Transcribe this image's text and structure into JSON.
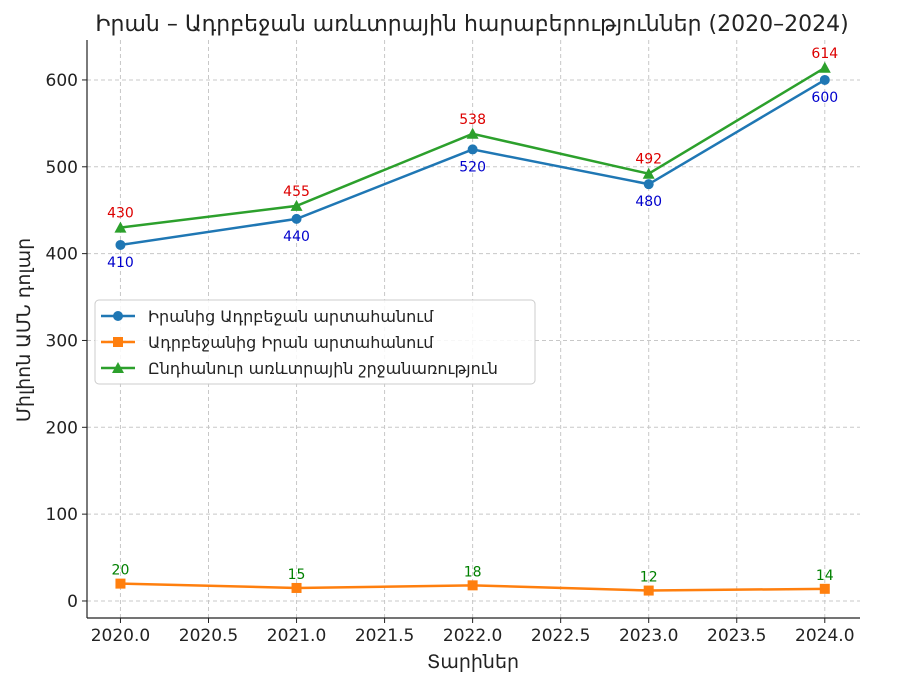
{
  "chart_data": {
    "type": "line",
    "title": "Իրան – Ադրբեջան առևտրային հարաբերություններ (2020–2024)",
    "xlabel": "Տարիներ",
    "ylabel": "Միլիոն ԱՄՆ դոլար",
    "x": [
      2020,
      2021,
      2022,
      2023,
      2024
    ],
    "xlim": [
      2019.81,
      2024.2
    ],
    "ylim": [
      -19.6,
      646
    ],
    "xticks": [
      2020.0,
      2020.5,
      2021.0,
      2021.5,
      2022.0,
      2022.5,
      2023.0,
      2023.5,
      2024.0
    ],
    "xtick_labels": [
      "2020.0",
      "2020.5",
      "2021.0",
      "2021.5",
      "2022.0",
      "2022.5",
      "2023.0",
      "2023.5",
      "2024.0"
    ],
    "yticks": [
      0,
      100,
      200,
      300,
      400,
      500,
      600
    ],
    "ytick_labels": [
      "0",
      "100",
      "200",
      "300",
      "400",
      "500",
      "600"
    ],
    "grid": true,
    "legend_position": "top-left",
    "series": [
      {
        "name": "Իրանից Ադրբեջան արտահանում",
        "values": [
          410,
          440,
          520,
          480,
          600
        ],
        "color": "#1f77b4",
        "marker": "circle",
        "label_color": "#0000cc"
      },
      {
        "name": "Ադրբեջանից Իրան արտահանում",
        "values": [
          20,
          15,
          18,
          12,
          14
        ],
        "color": "#ff7f0e",
        "marker": "square",
        "label_color": "#008000"
      },
      {
        "name": "Ընդհանուր առևտրային շրջանառություն",
        "values": [
          430,
          455,
          538,
          492,
          614
        ],
        "color": "#2ca02c",
        "marker": "triangle",
        "label_color": "#dd0000"
      }
    ],
    "data_labels": [
      [
        "410",
        "440",
        "520",
        "480",
        "600"
      ],
      [
        "20",
        "15",
        "18",
        "12",
        "14"
      ],
      [
        "430",
        "455",
        "538",
        "492",
        "614"
      ]
    ]
  }
}
